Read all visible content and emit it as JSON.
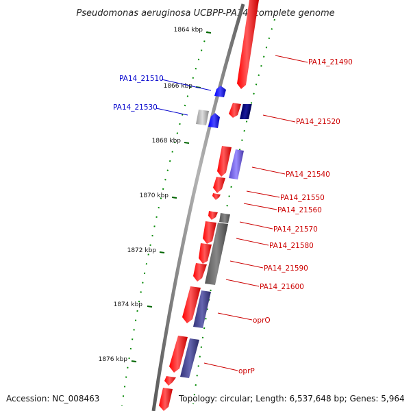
{
  "title": "Pseudomonas aeruginosa UCBPP-PA14, complete genome",
  "footer": {
    "accession": "Accession: NC_008463",
    "summary": "Topology: circular; Length: 6,537,648 bp; Genes: 5,964"
  },
  "ticks": [
    "1864 kbp",
    "1866 kbp",
    "1868 kbp",
    "1870 kbp",
    "1872 kbp",
    "1874 kbp",
    "1876 kbp"
  ],
  "gene_labels": {
    "reverse": [
      "PA14_21510",
      "PA14_21530"
    ],
    "forward": [
      "PA14_21490",
      "PA14_21520",
      "PA14_21540",
      "PA14_21550",
      "PA14_21560",
      "PA14_21570",
      "PA14_21580",
      "PA14_21590",
      "PA14_21600",
      "oprO",
      "oprP"
    ]
  },
  "colors": {
    "forward_gene": "#ff0000",
    "reverse_gene": "#0000ff",
    "forward_label": "#cc0000",
    "reverse_label": "#0000cc",
    "tick": "#006600",
    "backbone": "#888888"
  }
}
